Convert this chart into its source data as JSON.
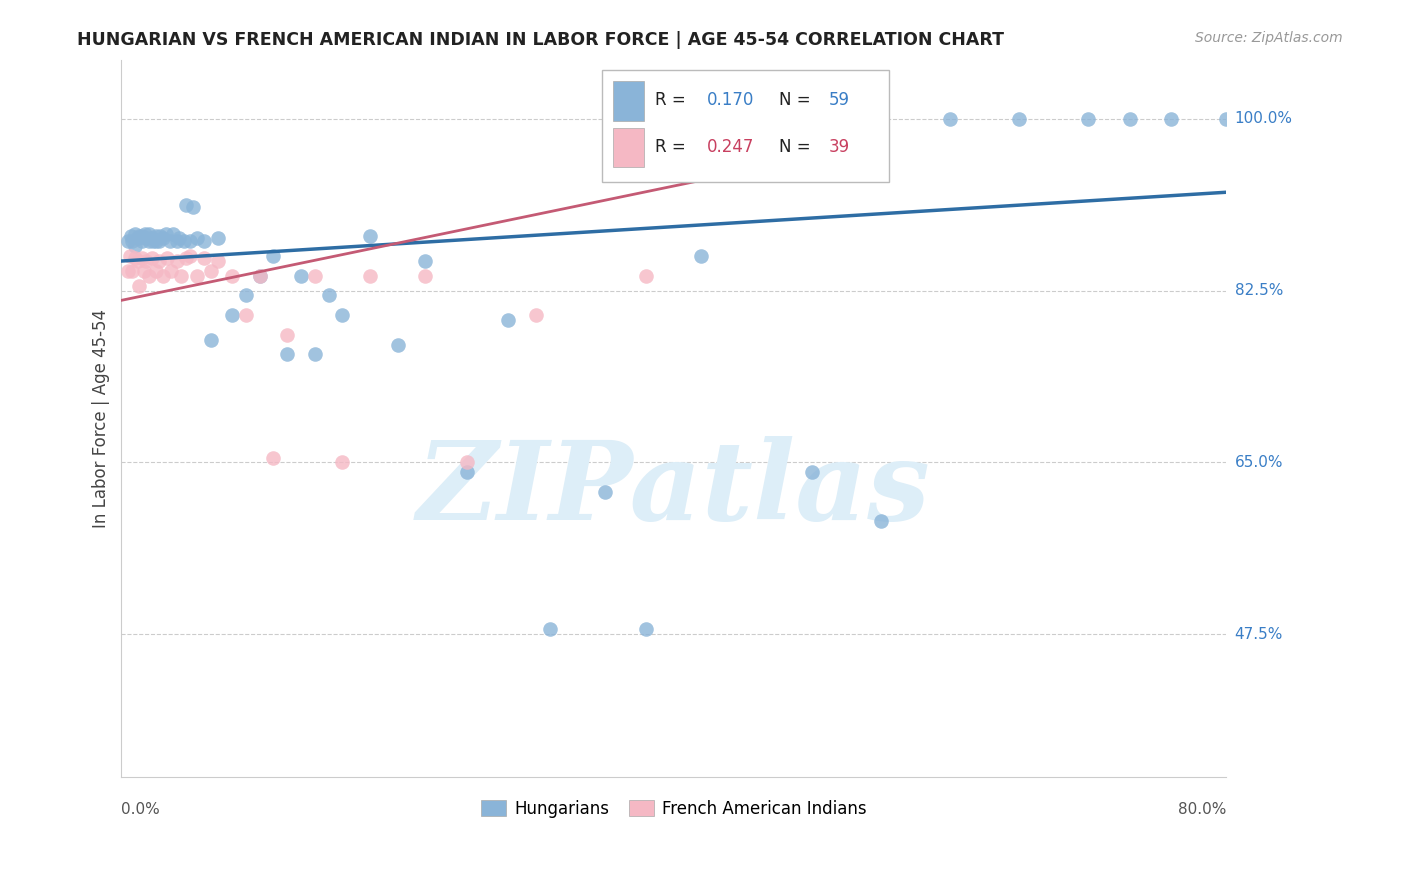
{
  "title": "HUNGARIAN VS FRENCH AMERICAN INDIAN IN LABOR FORCE | AGE 45-54 CORRELATION CHART",
  "source": "Source: ZipAtlas.com",
  "ylabel": "In Labor Force | Age 45-54",
  "ytick_labels": [
    "100.0%",
    "82.5%",
    "65.0%",
    "47.5%"
  ],
  "ytick_values": [
    1.0,
    0.825,
    0.65,
    0.475
  ],
  "xlim": [
    0.0,
    0.8
  ],
  "ylim": [
    0.33,
    1.06
  ],
  "legend_blue_label": "Hungarians",
  "legend_pink_label": "French American Indians",
  "R_blue": 0.17,
  "N_blue": 59,
  "R_pink": 0.247,
  "N_pink": 39,
  "blue_color": "#8ab4d8",
  "pink_color": "#f5b8c4",
  "line_blue": "#2e6da4",
  "line_pink": "#c45a74",
  "watermark_color": "#ddeef8",
  "blue_line_x": [
    0.0,
    0.8
  ],
  "blue_line_y": [
    0.855,
    0.925
  ],
  "pink_line_x": [
    0.0,
    0.55
  ],
  "pink_line_y": [
    0.815,
    0.975
  ],
  "blue_x": [
    0.005,
    0.007,
    0.008,
    0.01,
    0.01,
    0.012,
    0.013,
    0.015,
    0.015,
    0.017,
    0.018,
    0.02,
    0.02,
    0.022,
    0.023,
    0.025,
    0.025,
    0.027,
    0.028,
    0.03,
    0.032,
    0.035,
    0.037,
    0.04,
    0.042,
    0.045,
    0.047,
    0.05,
    0.052,
    0.055,
    0.06,
    0.065,
    0.07,
    0.08,
    0.09,
    0.1,
    0.11,
    0.12,
    0.13,
    0.14,
    0.15,
    0.16,
    0.18,
    0.2,
    0.22,
    0.25,
    0.28,
    0.31,
    0.35,
    0.38,
    0.42,
    0.5,
    0.55,
    0.6,
    0.65,
    0.7,
    0.73,
    0.76,
    0.8
  ],
  "blue_y": [
    0.875,
    0.88,
    0.875,
    0.87,
    0.882,
    0.878,
    0.88,
    0.88,
    0.875,
    0.882,
    0.878,
    0.875,
    0.882,
    0.878,
    0.875,
    0.88,
    0.875,
    0.875,
    0.88,
    0.878,
    0.882,
    0.875,
    0.882,
    0.875,
    0.878,
    0.875,
    0.912,
    0.875,
    0.91,
    0.878,
    0.875,
    0.775,
    0.878,
    0.8,
    0.82,
    0.84,
    0.86,
    0.76,
    0.84,
    0.76,
    0.82,
    0.8,
    0.88,
    0.77,
    0.855,
    0.64,
    0.795,
    0.48,
    0.62,
    0.48,
    0.86,
    0.64,
    0.59,
    1.0,
    1.0,
    1.0,
    1.0,
    1.0,
    1.0
  ],
  "pink_x": [
    0.005,
    0.006,
    0.008,
    0.01,
    0.012,
    0.013,
    0.015,
    0.016,
    0.018,
    0.02,
    0.022,
    0.025,
    0.027,
    0.03,
    0.033,
    0.036,
    0.04,
    0.043,
    0.047,
    0.05,
    0.055,
    0.06,
    0.065,
    0.07,
    0.08,
    0.09,
    0.1,
    0.11,
    0.12,
    0.14,
    0.16,
    0.18,
    0.22,
    0.25,
    0.3,
    0.38,
    0.42,
    0.48,
    0.54
  ],
  "pink_y": [
    0.845,
    0.86,
    0.845,
    0.858,
    0.855,
    0.83,
    0.858,
    0.845,
    0.855,
    0.84,
    0.858,
    0.845,
    0.855,
    0.84,
    0.858,
    0.845,
    0.855,
    0.84,
    0.858,
    0.86,
    0.84,
    0.858,
    0.845,
    0.855,
    0.84,
    0.8,
    0.84,
    0.655,
    0.78,
    0.84,
    0.65,
    0.84,
    0.84,
    0.65,
    0.8,
    0.84,
    1.0,
    1.0,
    1.0
  ]
}
